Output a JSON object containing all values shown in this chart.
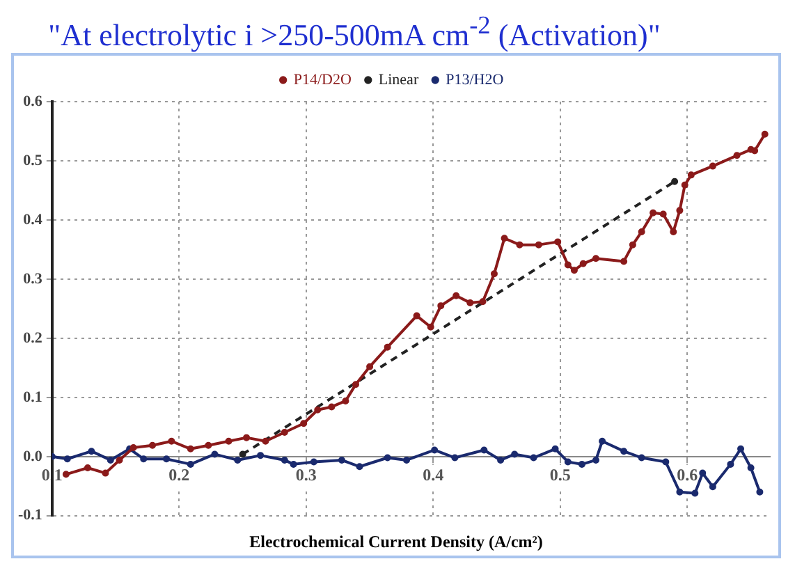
{
  "chart_data": {
    "type": "line",
    "title": "\"At electrolytic i >250-500mA cm$^{-2}$     (Activation)\"",
    "xlabel": "Electrochemical Current Density (A/cm²)",
    "xlim": [
      0.1,
      0.665
    ],
    "xticks": [
      0.1,
      0.2,
      0.3,
      0.4,
      0.5,
      0.6
    ],
    "ylim": [
      -0.1,
      0.6
    ],
    "yticks": [
      -0.1,
      {
        "value": 0,
        "label": "0.0"
      },
      0.1,
      0.2,
      0.3,
      0.4,
      0.5,
      0.6
    ],
    "grid": true,
    "legend": "top",
    "marker": "circle",
    "series": [
      {
        "name": "P14/D2O",
        "color": "#8b1a1a",
        "line_style": "solid",
        "x": [
          0.111,
          0.128,
          0.142,
          0.153,
          0.164,
          0.179,
          0.194,
          0.209,
          0.223,
          0.239,
          0.253,
          0.268,
          0.283,
          0.298,
          0.309,
          0.32,
          0.331,
          0.339,
          0.35,
          0.364,
          0.387,
          0.398,
          0.406,
          0.418,
          0.429,
          0.439,
          0.448,
          0.456,
          0.468,
          0.483,
          0.498,
          0.506,
          0.511,
          0.518,
          0.528,
          0.55,
          0.557,
          0.564,
          0.573,
          0.581,
          0.589,
          0.594,
          0.598,
          0.603,
          0.62,
          0.639,
          0.65,
          0.653,
          0.661
        ],
        "values": [
          -0.03,
          -0.019,
          -0.028,
          -0.006,
          0.015,
          0.019,
          0.026,
          0.013,
          0.019,
          0.026,
          0.032,
          0.026,
          0.041,
          0.056,
          0.079,
          0.084,
          0.094,
          0.122,
          0.152,
          0.185,
          0.238,
          0.219,
          0.255,
          0.272,
          0.26,
          0.262,
          0.309,
          0.369,
          0.358,
          0.358,
          0.363,
          0.324,
          0.315,
          0.326,
          0.335,
          0.33,
          0.358,
          0.38,
          0.412,
          0.41,
          0.38,
          0.416,
          0.459,
          0.476,
          0.491,
          0.509,
          0.519,
          0.517,
          0.545
        ]
      },
      {
        "name": "Linear",
        "color": "#222222",
        "line_style": "dashed",
        "x": [
          0.25,
          0.59
        ],
        "values": [
          0.004,
          0.465
        ]
      },
      {
        "name": "P13/H2O",
        "color": "#1a2a6e",
        "line_style": "solid",
        "x": [
          0.1,
          0.112,
          0.131,
          0.146,
          0.161,
          0.172,
          0.19,
          0.209,
          0.228,
          0.246,
          0.264,
          0.283,
          0.29,
          0.306,
          0.328,
          0.342,
          0.364,
          0.379,
          0.401,
          0.417,
          0.44,
          0.453,
          0.464,
          0.479,
          0.496,
          0.506,
          0.517,
          0.528,
          0.533,
          0.55,
          0.564,
          0.583,
          0.594,
          0.606,
          0.612,
          0.62,
          0.634,
          0.642,
          0.65,
          0.657
        ],
        "values": [
          0,
          -0.004,
          0.009,
          -0.006,
          0.013,
          -0.004,
          -0.004,
          -0.013,
          0.004,
          -0.006,
          0.002,
          -0.006,
          -0.013,
          -0.009,
          -0.006,
          -0.017,
          -0.002,
          -0.006,
          0.011,
          -0.002,
          0.011,
          -0.006,
          0.004,
          -0.002,
          0.013,
          -0.009,
          -0.013,
          -0.006,
          0.026,
          0.009,
          -0.002,
          -0.009,
          -0.06,
          -0.062,
          -0.028,
          -0.051,
          -0.013,
          0.013,
          -0.019,
          -0.06
        ]
      }
    ]
  }
}
